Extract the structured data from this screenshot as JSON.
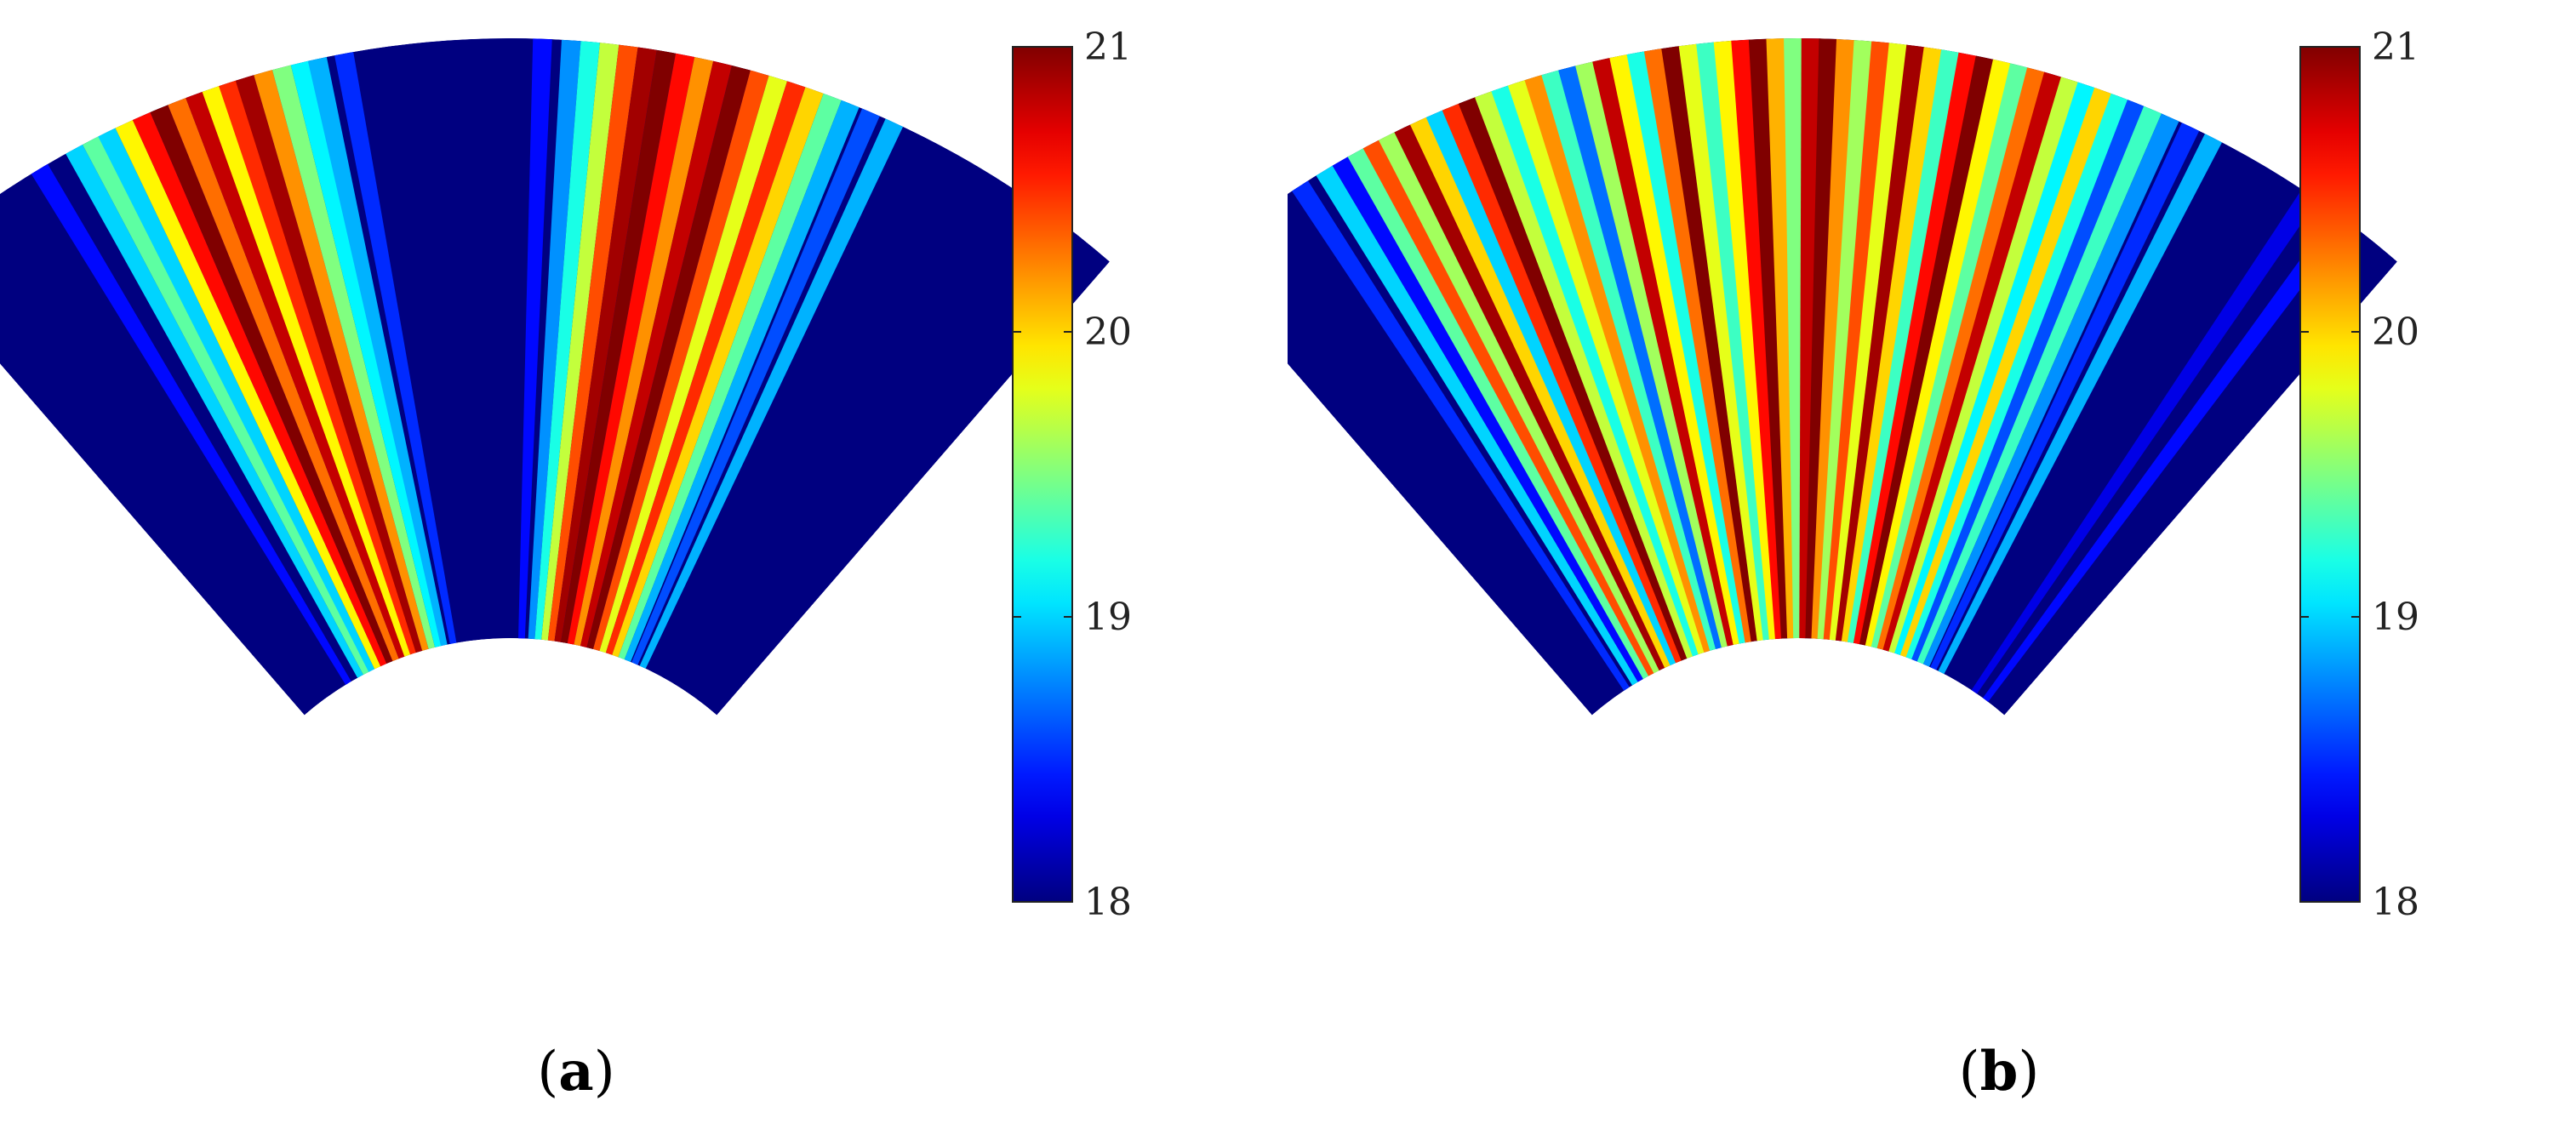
{
  "chart_data": [
    {
      "type": "heatmap",
      "panel_label": "a",
      "colormap": "jet",
      "colorbar": {
        "min": 18,
        "max": 21,
        "ticks": [
          "18",
          "19",
          "20",
          "21"
        ]
      },
      "grid": false,
      "angles_deg": [
        -39.5,
        -36.7,
        -33.8,
        -31.0,
        -28.2,
        -25.3,
        -22.5,
        -19.6,
        -16.8,
        -14.0,
        -11.1,
        -8.3,
        -5.4,
        -2.6,
        0.2,
        3.1,
        5.9,
        8.8,
        11.6,
        14.4,
        17.3,
        20.1,
        23.0,
        25.8,
        28.6,
        31.5,
        34.3,
        37.2
      ],
      "values": [
        18.0,
        18.0,
        18.0,
        18.0,
        18.0,
        18.0,
        18.0,
        18.0,
        18.0,
        18.0,
        18.0,
        18.0,
        18.0,
        18.0,
        18.0,
        18.0,
        18.0,
        18.0,
        18.0,
        18.0,
        18.0,
        18.0,
        18.0,
        18.0,
        18.0,
        18.0,
        18.0,
        18.0
      ]
    },
    {
      "type": "heatmap",
      "panel_label": "b",
      "colormap": "jet",
      "colorbar": {
        "min": 18,
        "max": 21,
        "ticks": [
          "18",
          "19",
          "20",
          "21"
        ]
      },
      "grid": false,
      "angles_deg": [
        -39.5,
        -36.7,
        -33.8,
        -31.0,
        -28.2,
        -25.3,
        -22.5,
        -19.6,
        -16.8,
        -14.0,
        -11.1,
        -8.3,
        -5.4,
        -2.6,
        0.2,
        3.1,
        5.9,
        8.8,
        11.6,
        14.4,
        17.3,
        20.1,
        23.0,
        25.8,
        28.6,
        31.5,
        34.3,
        37.2
      ],
      "values": [
        18.0,
        18.0,
        18.0,
        18.0,
        18.0,
        18.0,
        18.0,
        18.0,
        18.0,
        18.0,
        18.0,
        18.0,
        18.0,
        18.0,
        18.0,
        18.0,
        18.0,
        18.0,
        18.0,
        18.0,
        18.0,
        18.0,
        18.0,
        18.0,
        18.0,
        18.0,
        18.0,
        18.0
      ]
    }
  ],
  "rays": {
    "a": [
      {
        "a": -31,
        "v": 18.4
      },
      {
        "a": -28.5,
        "v": 19.0
      },
      {
        "a": -27.3,
        "v": 19.4
      },
      {
        "a": -26.2,
        "v": 19.0
      },
      {
        "a": -25.0,
        "v": 19.9
      },
      {
        "a": -23.8,
        "v": 20.6
      },
      {
        "a": -22.6,
        "v": 21.0
      },
      {
        "a": -21.4,
        "v": 20.3
      },
      {
        "a": -20.2,
        "v": 20.8
      },
      {
        "a": -19.1,
        "v": 19.9
      },
      {
        "a": -18.0,
        "v": 20.5
      },
      {
        "a": -16.9,
        "v": 20.9
      },
      {
        "a": -15.7,
        "v": 20.2
      },
      {
        "a": -14.5,
        "v": 19.5
      },
      {
        "a": -13.3,
        "v": 19.1
      },
      {
        "a": -12.2,
        "v": 18.9
      },
      {
        "a": -10.5,
        "v": 18.5
      },
      {
        "a": 2.0,
        "v": 18.4
      },
      {
        "a": 3.8,
        "v": 18.8
      },
      {
        "a": 5.0,
        "v": 19.2
      },
      {
        "a": 6.2,
        "v": 19.7
      },
      {
        "a": 7.4,
        "v": 20.4
      },
      {
        "a": 8.6,
        "v": 20.9
      },
      {
        "a": 9.8,
        "v": 21.0
      },
      {
        "a": 11.0,
        "v": 20.6
      },
      {
        "a": 12.2,
        "v": 20.2
      },
      {
        "a": 13.4,
        "v": 20.8
      },
      {
        "a": 14.6,
        "v": 21.0
      },
      {
        "a": 15.8,
        "v": 20.4
      },
      {
        "a": 17.0,
        "v": 19.8
      },
      {
        "a": 18.2,
        "v": 20.5
      },
      {
        "a": 19.4,
        "v": 20.0
      },
      {
        "a": 20.6,
        "v": 19.4
      },
      {
        "a": 21.8,
        "v": 18.9
      },
      {
        "a": 23.2,
        "v": 18.6
      },
      {
        "a": 24.8,
        "v": 18.9
      }
    ],
    "b": [
      {
        "a": -33,
        "v": 18.5
      },
      {
        "a": -31.2,
        "v": 19.0
      },
      {
        "a": -30.0,
        "v": 18.4
      },
      {
        "a": -28.9,
        "v": 19.4
      },
      {
        "a": -27.8,
        "v": 20.4
      },
      {
        "a": -26.7,
        "v": 19.6
      },
      {
        "a": -25.6,
        "v": 20.9
      },
      {
        "a": -24.5,
        "v": 20.0
      },
      {
        "a": -23.4,
        "v": 19.0
      },
      {
        "a": -22.3,
        "v": 20.5
      },
      {
        "a": -21.2,
        "v": 21.0
      },
      {
        "a": -20.1,
        "v": 19.7
      },
      {
        "a": -19.0,
        "v": 19.2
      },
      {
        "a": -17.9,
        "v": 19.8
      },
      {
        "a": -16.8,
        "v": 20.2
      },
      {
        "a": -15.7,
        "v": 19.3
      },
      {
        "a": -14.6,
        "v": 18.7
      },
      {
        "a": -13.5,
        "v": 19.6
      },
      {
        "a": -12.4,
        "v": 20.8
      },
      {
        "a": -11.3,
        "v": 19.9
      },
      {
        "a": -10.2,
        "v": 19.2
      },
      {
        "a": -9.1,
        "v": 20.3
      },
      {
        "a": -8.0,
        "v": 21.0
      },
      {
        "a": -6.9,
        "v": 19.8
      },
      {
        "a": -5.8,
        "v": 19.3
      },
      {
        "a": -4.7,
        "v": 19.9
      },
      {
        "a": -3.6,
        "v": 20.6
      },
      {
        "a": -2.5,
        "v": 21.0
      },
      {
        "a": -1.4,
        "v": 20.1
      },
      {
        "a": -0.3,
        "v": 19.5
      },
      {
        "a": 0.8,
        "v": 20.8
      },
      {
        "a": 1.9,
        "v": 21.0
      },
      {
        "a": 3.0,
        "v": 20.2
      },
      {
        "a": 4.1,
        "v": 19.6
      },
      {
        "a": 5.2,
        "v": 20.4
      },
      {
        "a": 6.3,
        "v": 19.8
      },
      {
        "a": 7.4,
        "v": 20.9
      },
      {
        "a": 8.5,
        "v": 20.0
      },
      {
        "a": 9.6,
        "v": 19.3
      },
      {
        "a": 10.7,
        "v": 20.6
      },
      {
        "a": 11.8,
        "v": 21.0
      },
      {
        "a": 12.9,
        "v": 19.9
      },
      {
        "a": 14.0,
        "v": 19.4
      },
      {
        "a": 15.1,
        "v": 20.3
      },
      {
        "a": 16.2,
        "v": 20.8
      },
      {
        "a": 17.3,
        "v": 19.7
      },
      {
        "a": 18.4,
        "v": 19.1
      },
      {
        "a": 19.5,
        "v": 20.0
      },
      {
        "a": 20.6,
        "v": 19.2
      },
      {
        "a": 21.7,
        "v": 18.6
      },
      {
        "a": 22.8,
        "v": 19.3
      },
      {
        "a": 24.0,
        "v": 18.8
      },
      {
        "a": 25.4,
        "v": 18.5
      },
      {
        "a": 27.0,
        "v": 18.9
      },
      {
        "a": 34.0,
        "v": 18.3
      },
      {
        "a": 36.5,
        "v": 18.4
      }
    ]
  }
}
